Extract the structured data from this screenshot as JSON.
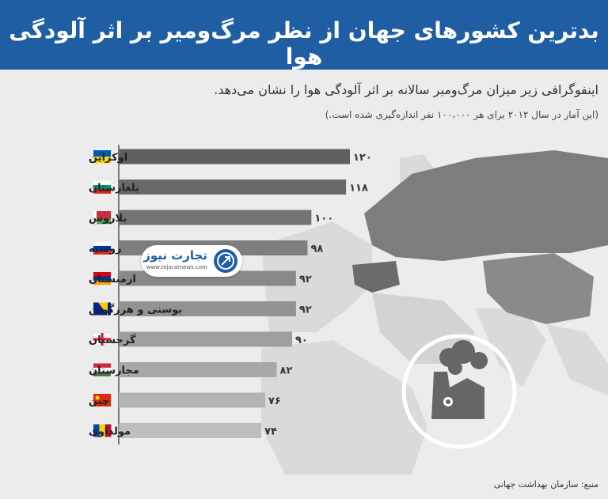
{
  "header": {
    "title": "بدترین کشورهای جهان از نظر مرگ‌ومیر بر اثر آلودگی هوا"
  },
  "subtitle": "اینفوگرافی زیر میزان مرگ‌ومیر سالانه بر اثر آلودگی هوا را نشان می‌دهد.",
  "note": "(این آمار در سال ۲۰۱۲ برای هر ۱۰۰،۰۰۰ نفر اندازه‌گیری شده است.)",
  "source": "منبع: سازمان بهداشت جهانی",
  "logo": {
    "name": "تجارت نیوز",
    "url": "www.tejaratnews.com",
    "icon": "tejaratnews-logo-icon"
  },
  "colors": {
    "header": "#1f5ea3",
    "bar_top": "#5f5f5f",
    "bar_bottom": "#bdbdbd",
    "map_land": "#dadada",
    "map_highlight": "#7d7d7d"
  },
  "chart_data": {
    "type": "bar",
    "orientation": "horizontal",
    "categories": [
      "اوکراین",
      "بلغارستان",
      "بلاروس",
      "روسیه",
      "ارمنستان",
      "بوسنی و هرزگوین",
      "گرجستان",
      "مجارستان",
      "چین",
      "مولداوی"
    ],
    "values": [
      120,
      118,
      100,
      98,
      92,
      92,
      90,
      82,
      76,
      74
    ],
    "value_labels": [
      "۱۲۰",
      "۱۱۸",
      "۱۰۰",
      "۹۸",
      "۹۲",
      "۹۲",
      "۹۰",
      "۸۲",
      "۷۶",
      "۷۴"
    ],
    "flags": [
      "flag-ukraine",
      "flag-bulgaria",
      "flag-belarus",
      "flag-russia",
      "flag-armenia",
      "flag-bosnia-herzegovina",
      "flag-georgia",
      "flag-hungary",
      "flag-china",
      "flag-moldova"
    ],
    "xlim": [
      0,
      120
    ],
    "grid": false,
    "legend": "none"
  }
}
